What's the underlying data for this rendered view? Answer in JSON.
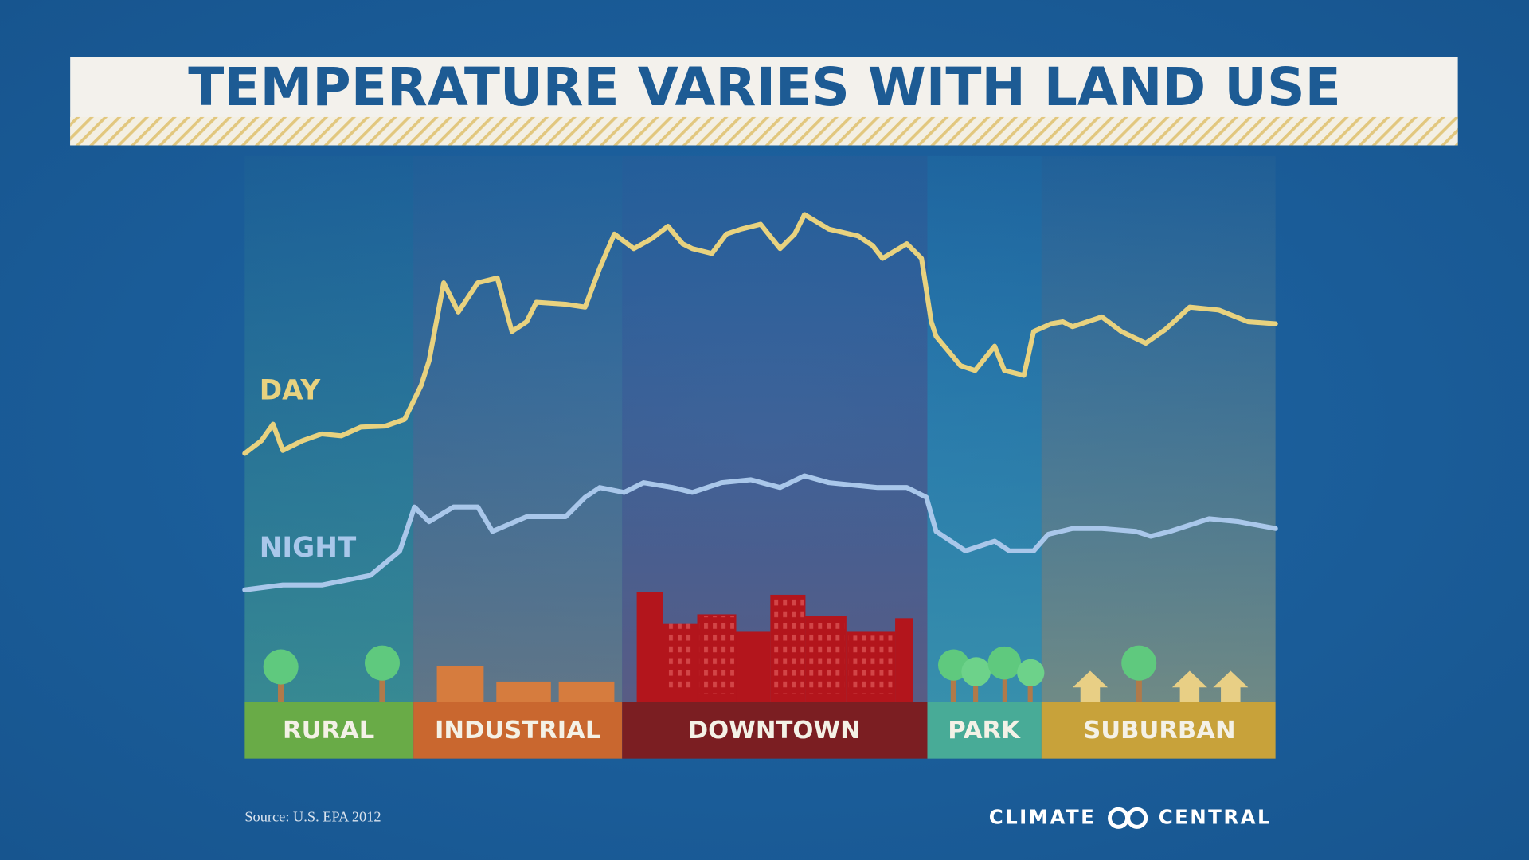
{
  "header": {
    "title": "TEMPERATURE VARIES WITH LAND USE"
  },
  "lines": [
    {
      "label": "DAY"
    },
    {
      "label": "NIGHT"
    }
  ],
  "zones": [
    {
      "label": "RURAL"
    },
    {
      "label": "INDUSTRIAL"
    },
    {
      "label": "DOWNTOWN"
    },
    {
      "label": "PARK"
    },
    {
      "label": "SUBURBAN"
    }
  ],
  "footer": {
    "source": "Source: U.S. EPA 2012",
    "logo_left": "CLIMATE",
    "logo_right": "CENTRAL"
  }
}
